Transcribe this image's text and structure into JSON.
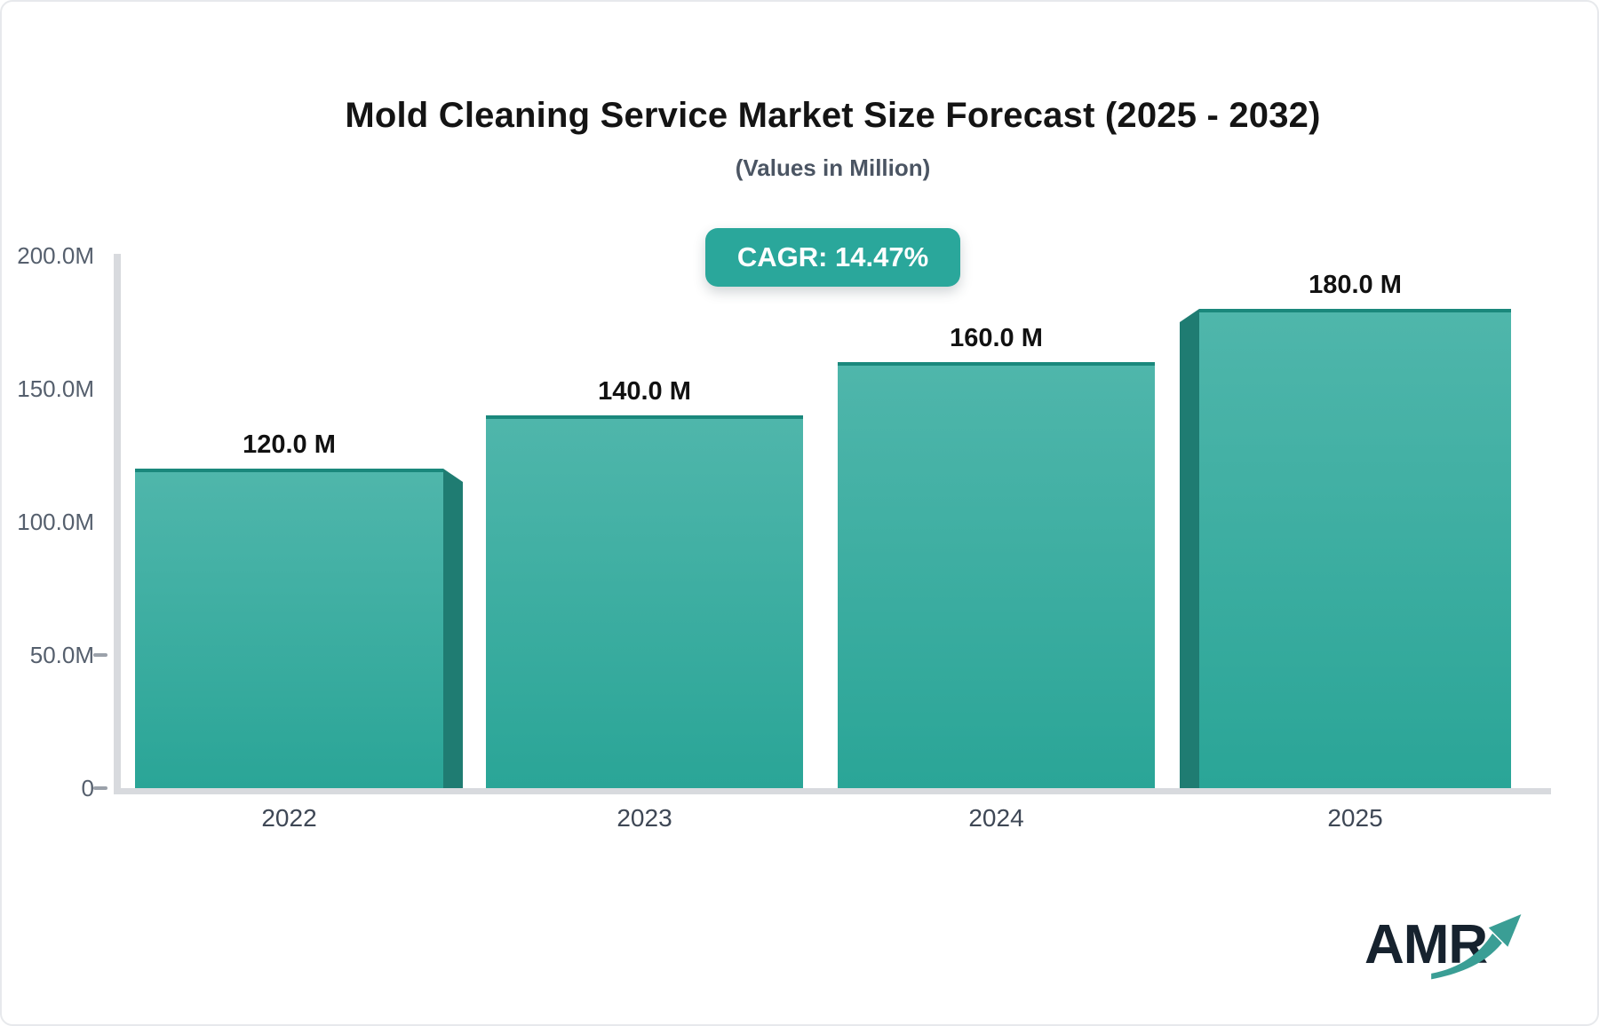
{
  "header": {
    "title": "Mold Cleaning Service Market Size Forecast (2025 - 2032)",
    "subtitle": "(Values in Million)",
    "cagr_label": "CAGR: 14.47%"
  },
  "chart_data": {
    "type": "bar",
    "title": "Mold Cleaning Service Market Size Forecast (2025 - 2032)",
    "subtitle": "(Values in Million)",
    "cagr": "CAGR: 14.47%",
    "categories": [
      "2022",
      "2023",
      "2024",
      "2025"
    ],
    "values": [
      120,
      140,
      160,
      180
    ],
    "value_labels": [
      "120.0 M",
      "140.0 M",
      "160.0 M",
      "180.0 M"
    ],
    "y_ticks": [
      "200.0M",
      "150.0M",
      "100.0M",
      "50.0M",
      "0"
    ],
    "ylim": [
      0,
      200
    ],
    "grid": "off",
    "legend": "none",
    "colors": {
      "accent": "#2aa79b",
      "bar_top": "#4fb6ab",
      "bar_bottom": "#2aa597",
      "bar_side": "#1f7c72",
      "bar_edge": "#1a887c",
      "axis": "#d8dade",
      "tick_text": "#555f6d",
      "xlabel_text": "#3e4755",
      "value_text": "#111111",
      "logo_text": "#16222e",
      "logo_arrow": "#3a9e95"
    }
  },
  "logo": {
    "text": "AMR",
    "icon": "growth-arrow-icon"
  }
}
